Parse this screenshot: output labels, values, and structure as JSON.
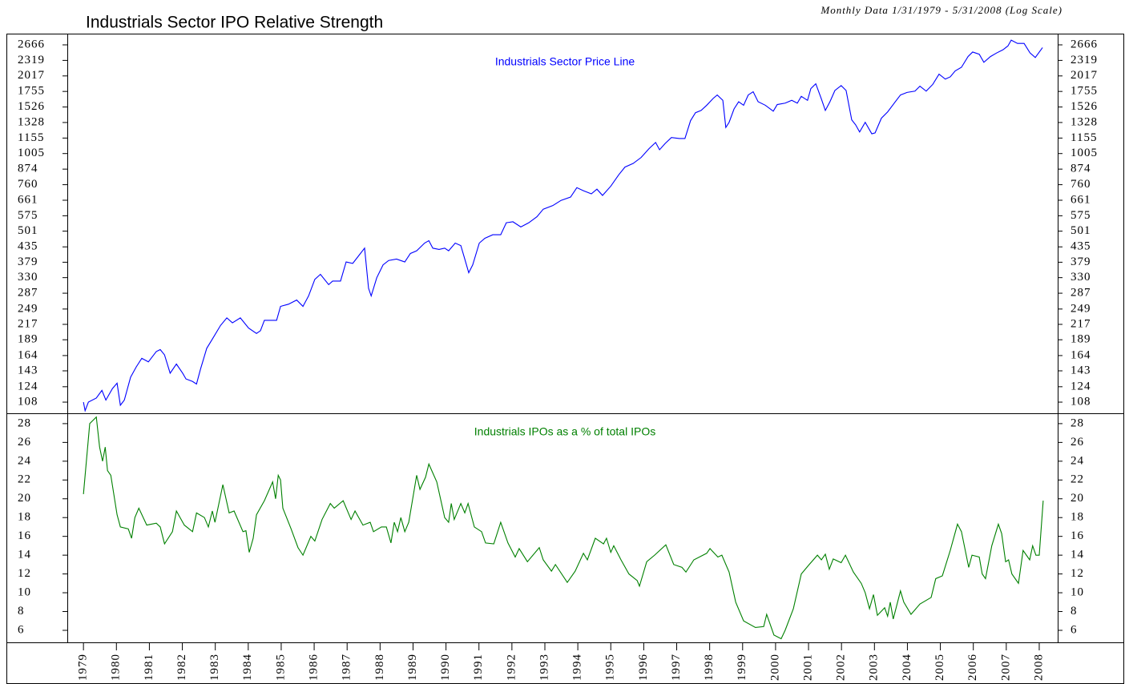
{
  "chart_data": [
    {
      "type": "line",
      "title": "Industrials Sector IPO Relative Strength",
      "subtitle": "Monthly Data 1/31/1979 - 5/31/2008 (Log Scale)",
      "log_scale": true,
      "xlim": [
        1978.51,
        2008.56
      ],
      "ylim": [
        97.7,
        2948
      ],
      "yticks": [
        108,
        124,
        143,
        164,
        189,
        217,
        249,
        287,
        330,
        379,
        435,
        501,
        575,
        661,
        760,
        874,
        1005,
        1155,
        1328,
        1526,
        1755,
        2017,
        2319,
        2666
      ],
      "x": [
        1979.0,
        1979.05,
        1979.15,
        1979.39,
        1979.56,
        1979.68,
        1979.88,
        1980.02,
        1980.12,
        1980.24,
        1980.43,
        1980.6,
        1980.77,
        1980.97,
        1981.21,
        1981.33,
        1981.46,
        1981.63,
        1981.82,
        1982.01,
        1982.11,
        1982.31,
        1982.43,
        1982.55,
        1982.74,
        1982.91,
        1983.16,
        1983.35,
        1983.52,
        1983.76,
        1984.01,
        1984.25,
        1984.37,
        1984.49,
        1984.86,
        1984.98,
        1985.22,
        1985.47,
        1985.66,
        1985.83,
        1986.02,
        1986.19,
        1986.44,
        1986.56,
        1986.8,
        1986.97,
        1987.17,
        1987.34,
        1987.53,
        1987.65,
        1987.73,
        1987.9,
        1988.09,
        1988.26,
        1988.5,
        1988.75,
        1988.92,
        1989.11,
        1989.35,
        1989.48,
        1989.6,
        1989.79,
        1989.96,
        1990.08,
        1990.28,
        1990.45,
        1990.57,
        1990.69,
        1990.81,
        1991.01,
        1991.18,
        1991.42,
        1991.66,
        1991.83,
        1992.03,
        1992.27,
        1992.51,
        1992.76,
        1992.95,
        1993.24,
        1993.49,
        1993.78,
        1993.97,
        1994.17,
        1994.41,
        1994.58,
        1994.75,
        1995.0,
        1995.24,
        1995.43,
        1995.68,
        1995.92,
        1996.16,
        1996.36,
        1996.48,
        1996.65,
        1996.84,
        1997.08,
        1997.25,
        1997.42,
        1997.57,
        1997.74,
        1997.91,
        1998.11,
        1998.23,
        1998.4,
        1998.49,
        1998.59,
        1998.74,
        1998.88,
        1999.03,
        1999.17,
        1999.32,
        1999.47,
        1999.69,
        1999.93,
        2000.05,
        2000.29,
        2000.49,
        2000.66,
        2000.78,
        2000.97,
        2001.07,
        2001.22,
        2001.39,
        2001.51,
        2001.65,
        2001.8,
        2001.99,
        2002.14,
        2002.31,
        2002.43,
        2002.55,
        2002.72,
        2002.92,
        2003.02,
        2003.21,
        2003.4,
        2003.6,
        2003.79,
        2003.99,
        2004.23,
        2004.38,
        2004.57,
        2004.77,
        2004.96,
        2005.15,
        2005.3,
        2005.45,
        2005.64,
        2005.84,
        2005.98,
        2006.18,
        2006.32,
        2006.52,
        2006.71,
        2006.9,
        2007.05,
        2007.15,
        2007.34,
        2007.54,
        2007.72,
        2007.88,
        2008.1
      ],
      "series": [
        {
          "name": "Industrials Sector Price Line",
          "color": "#0000ff",
          "values": [
            108,
            100,
            108,
            112,
            120,
            110,
            122,
            128,
            105,
            110,
            135,
            148,
            160,
            155,
            170,
            173,
            165,
            140,
            152,
            140,
            133,
            130,
            127,
            145,
            175,
            190,
            215,
            230,
            220,
            230,
            210,
            200,
            205,
            225,
            225,
            255,
            260,
            270,
            255,
            280,
            325,
            340,
            310,
            320,
            320,
            380,
            375,
            400,
            430,
            300,
            280,
            330,
            370,
            385,
            390,
            380,
            410,
            420,
            450,
            460,
            430,
            425,
            430,
            420,
            450,
            440,
            390,
            345,
            370,
            450,
            470,
            485,
            485,
            540,
            545,
            520,
            540,
            570,
            610,
            630,
            660,
            680,
            740,
            720,
            700,
            730,
            690,
            750,
            830,
            890,
            920,
            970,
            1050,
            1110,
            1040,
            1100,
            1160,
            1150,
            1150,
            1350,
            1450,
            1480,
            1550,
            1650,
            1700,
            1620,
            1270,
            1330,
            1500,
            1600,
            1550,
            1700,
            1750,
            1600,
            1550,
            1470,
            1560,
            1580,
            1620,
            1580,
            1680,
            1620,
            1800,
            1880,
            1640,
            1480,
            1600,
            1770,
            1850,
            1770,
            1360,
            1300,
            1220,
            1330,
            1200,
            1210,
            1380,
            1460,
            1580,
            1700,
            1740,
            1760,
            1840,
            1760,
            1870,
            2050,
            1960,
            2000,
            2110,
            2180,
            2400,
            2500,
            2450,
            2280,
            2400,
            2480,
            2550,
            2640,
            2780,
            2700,
            2700,
            2480,
            2380,
            2600
          ]
        }
      ]
    },
    {
      "type": "line",
      "xlim": [
        1978.51,
        2008.56
      ],
      "ylim": [
        4.72,
        29.1
      ],
      "yticks": [
        6,
        8,
        10,
        12,
        14,
        16,
        18,
        20,
        22,
        24,
        26,
        28
      ],
      "xticks": [
        1979,
        1980,
        1981,
        1982,
        1983,
        1984,
        1985,
        1986,
        1987,
        1988,
        1989,
        1990,
        1991,
        1992,
        1993,
        1994,
        1995,
        1996,
        1997,
        1998,
        1999,
        2000,
        2001,
        2002,
        2003,
        2004,
        2005,
        2006,
        2007,
        2008
      ],
      "x": [
        1979.0,
        1979.19,
        1979.39,
        1979.49,
        1979.58,
        1979.66,
        1979.73,
        1979.83,
        1980.02,
        1980.12,
        1980.36,
        1980.46,
        1980.56,
        1980.68,
        1980.92,
        1981.21,
        1981.33,
        1981.46,
        1981.7,
        1981.82,
        1982.06,
        1982.31,
        1982.43,
        1982.67,
        1982.79,
        1982.91,
        1982.99,
        1983.23,
        1983.42,
        1983.57,
        1983.84,
        1983.93,
        1984.03,
        1984.15,
        1984.25,
        1984.49,
        1984.74,
        1984.83,
        1984.91,
        1984.98,
        1985.05,
        1985.3,
        1985.51,
        1985.66,
        1985.9,
        1986.02,
        1986.24,
        1986.49,
        1986.61,
        1986.88,
        1987.12,
        1987.24,
        1987.48,
        1987.7,
        1987.8,
        1988.04,
        1988.19,
        1988.33,
        1988.43,
        1988.53,
        1988.63,
        1988.75,
        1988.87,
        1989.11,
        1989.21,
        1989.38,
        1989.48,
        1989.72,
        1989.96,
        1990.08,
        1990.16,
        1990.25,
        1990.45,
        1990.57,
        1990.67,
        1990.86,
        1991.08,
        1991.2,
        1991.45,
        1991.66,
        1991.88,
        1992.1,
        1992.22,
        1992.47,
        1992.83,
        1992.95,
        1993.2,
        1993.32,
        1993.68,
        1993.92,
        1994.17,
        1994.29,
        1994.53,
        1994.78,
        1994.87,
        1995.0,
        1995.09,
        1995.31,
        1995.55,
        1995.8,
        1995.87,
        1996.09,
        1996.33,
        1996.67,
        1996.91,
        1997.16,
        1997.28,
        1997.52,
        1997.91,
        1998.01,
        1998.25,
        1998.37,
        1998.59,
        1998.79,
        1999.03,
        1999.39,
        1999.64,
        1999.73,
        1999.95,
        2000.17,
        2000.29,
        2000.54,
        2000.78,
        2001.02,
        2001.27,
        2001.39,
        2001.51,
        2001.63,
        2001.75,
        2001.99,
        2002.12,
        2002.36,
        2002.6,
        2002.72,
        2002.85,
        2002.97,
        2003.09,
        2003.31,
        2003.4,
        2003.48,
        2003.57,
        2003.79,
        2003.89,
        2004.11,
        2004.38,
        2004.72,
        2004.86,
        2005.06,
        2005.3,
        2005.52,
        2005.64,
        2005.86,
        2005.96,
        2006.18,
        2006.27,
        2006.37,
        2006.56,
        2006.76,
        2006.86,
        2006.98,
        2007.07,
        2007.17,
        2007.37,
        2007.51,
        2007.71,
        2007.8,
        2007.9,
        2008.0,
        2008.12
      ],
      "series": [
        {
          "name": "Industrials IPOs as a % of total IPOs",
          "color": "#008000",
          "values": [
            20.5,
            28,
            28.7,
            25.5,
            24,
            25.5,
            23,
            22.5,
            18.3,
            17,
            16.8,
            15.8,
            18,
            19,
            17.2,
            17.4,
            17,
            15.2,
            16.5,
            18.7,
            17.2,
            16.5,
            18.5,
            18,
            17,
            18.7,
            17.5,
            21.5,
            18.5,
            18.7,
            16.5,
            16.6,
            14.3,
            15.8,
            18.3,
            19.8,
            21.8,
            20,
            22.5,
            22,
            19,
            16.8,
            14.8,
            14,
            16,
            15.5,
            17.8,
            19.5,
            19,
            19.8,
            17.8,
            18.7,
            17.2,
            17.5,
            16.5,
            17,
            17,
            15.3,
            17.5,
            16.5,
            18,
            16.5,
            17.5,
            22.5,
            21,
            22.3,
            23.7,
            21.8,
            18,
            17.5,
            19.5,
            17.8,
            19.5,
            18.5,
            19.5,
            17,
            16.5,
            15.3,
            15.2,
            17.5,
            15.3,
            13.8,
            14.7,
            13.3,
            14.8,
            13.5,
            12.3,
            13,
            11.1,
            12.3,
            14.2,
            13.5,
            15.8,
            15.2,
            15.8,
            14.3,
            15,
            13.5,
            12,
            11.3,
            10.7,
            13.3,
            14,
            15.1,
            13,
            12.7,
            12.2,
            13.5,
            14.2,
            14.7,
            13.8,
            14,
            12.2,
            9,
            7,
            6.3,
            6.4,
            7.7,
            5.5,
            5.1,
            6,
            8.3,
            12,
            13,
            14,
            13.5,
            14.1,
            12.5,
            13.6,
            13.2,
            14,
            12.2,
            11,
            10,
            8.3,
            9.8,
            7.6,
            8.4,
            7.5,
            9,
            7.2,
            10.2,
            9,
            7.7,
            8.8,
            9.5,
            11.5,
            11.8,
            14.5,
            17.3,
            16.5,
            12.7,
            14,
            13.8,
            12,
            11.5,
            15,
            17.3,
            16.3,
            13.3,
            13.5,
            12,
            11,
            14.5,
            13.5,
            15,
            14,
            14,
            19.8
          ]
        }
      ]
    }
  ]
}
